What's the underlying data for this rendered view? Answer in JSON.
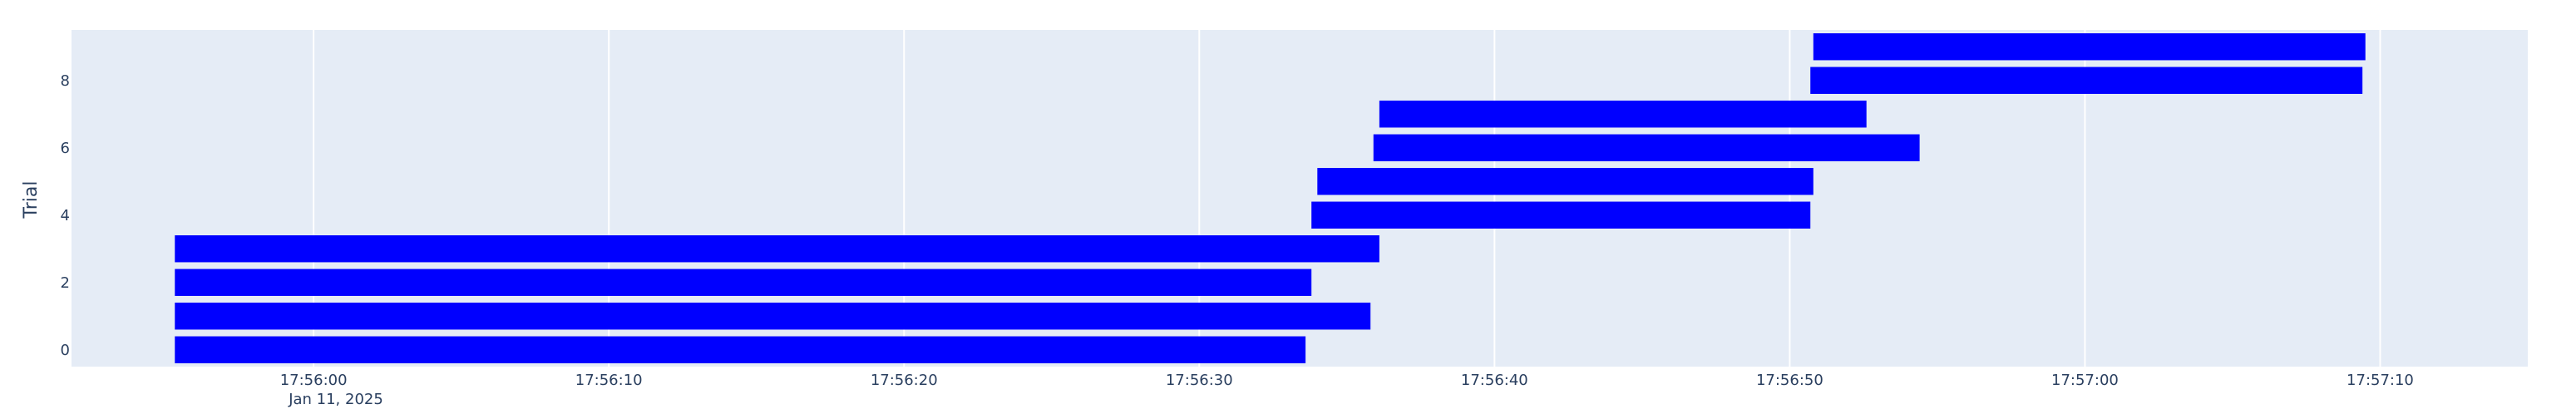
{
  "chart_data": {
    "type": "timeline",
    "title": "",
    "xlabel": "",
    "ylabel": "Trial",
    "x_date_label": "Jan 11, 2025",
    "xlim": [
      "17:55:51.8",
      "17:57:15.0"
    ],
    "ylim": [
      -0.5,
      9.5
    ],
    "x_ticks": [
      "17:56:00",
      "17:56:10",
      "17:56:20",
      "17:56:30",
      "17:56:40",
      "17:56:50",
      "17:57:00",
      "17:57:10"
    ],
    "y_ticks": [
      0,
      2,
      4,
      6,
      8
    ],
    "grid": true,
    "legend": "none",
    "bar_color": "#0000ff",
    "plot_background": "#e5ecf6",
    "bars": [
      {
        "trial": 0,
        "start": "17:55:55.3",
        "end": "17:56:33.6"
      },
      {
        "trial": 1,
        "start": "17:55:55.3",
        "end": "17:56:35.8"
      },
      {
        "trial": 2,
        "start": "17:55:55.3",
        "end": "17:56:33.8"
      },
      {
        "trial": 3,
        "start": "17:55:55.3",
        "end": "17:56:36.1"
      },
      {
        "trial": 4,
        "start": "17:56:33.8",
        "end": "17:56:50.7"
      },
      {
        "trial": 5,
        "start": "17:56:34.0",
        "end": "17:56:50.8"
      },
      {
        "trial": 6,
        "start": "17:56:35.9",
        "end": "17:56:54.4"
      },
      {
        "trial": 7,
        "start": "17:56:36.1",
        "end": "17:56:52.6"
      },
      {
        "trial": 8,
        "start": "17:56:50.7",
        "end": "17:57:09.4"
      },
      {
        "trial": 9,
        "start": "17:56:50.8",
        "end": "17:57:09.5"
      }
    ]
  }
}
